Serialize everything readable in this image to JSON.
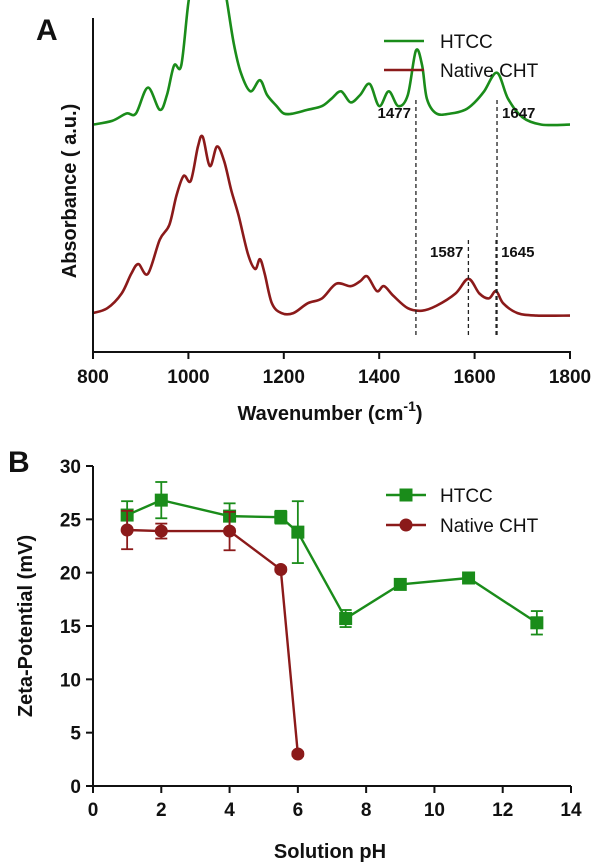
{
  "colors": {
    "htcc": "#1a8c1a",
    "native": "#8b1a1a",
    "axis": "#111111"
  },
  "panels": {
    "a": "A",
    "b": "B"
  },
  "chart_data": [
    {
      "type": "line",
      "panel": "A",
      "xlabel_main": "Wavenumber (cm",
      "xlabel_sup": "-1",
      "xlabel_close": ")",
      "ylabel": "Absorbance ( a.u.)",
      "xlim": [
        800,
        1800
      ],
      "xticks": [
        "800",
        "1000",
        "1200",
        "1400",
        "1600",
        "1800"
      ],
      "legend_position": "top-right",
      "series": [
        {
          "name": "HTCC",
          "x": [
            800,
            840,
            870,
            890,
            915,
            940,
            955,
            970,
            985,
            1000,
            1015,
            1025,
            1040,
            1050,
            1065,
            1080,
            1095,
            1110,
            1130,
            1150,
            1165,
            1185,
            1200,
            1220,
            1250,
            1280,
            1300,
            1320,
            1340,
            1360,
            1380,
            1400,
            1420,
            1440,
            1460,
            1477,
            1490,
            1500,
            1520,
            1550,
            1580,
            1600,
            1620,
            1647,
            1670,
            1700,
            1740,
            1800
          ],
          "y": [
            0.52,
            0.53,
            0.55,
            0.55,
            0.62,
            0.56,
            0.6,
            0.68,
            0.68,
            0.85,
            0.96,
            1.0,
            0.92,
            0.94,
            0.97,
            0.86,
            0.74,
            0.66,
            0.61,
            0.64,
            0.6,
            0.57,
            0.55,
            0.55,
            0.56,
            0.57,
            0.59,
            0.61,
            0.58,
            0.6,
            0.63,
            0.57,
            0.61,
            0.57,
            0.6,
            0.72,
            0.68,
            0.59,
            0.55,
            0.55,
            0.56,
            0.58,
            0.61,
            0.66,
            0.59,
            0.54,
            0.52,
            0.52
          ]
        },
        {
          "name": "Native CHT",
          "x": [
            800,
            830,
            860,
            880,
            895,
            915,
            940,
            960,
            975,
            990,
            1005,
            1020,
            1030,
            1045,
            1060,
            1075,
            1090,
            1105,
            1125,
            1140,
            1150,
            1160,
            1175,
            1195,
            1220,
            1250,
            1280,
            1310,
            1340,
            1360,
            1375,
            1395,
            1410,
            1430,
            1460,
            1490,
            1520,
            1560,
            1587,
            1610,
            1630,
            1645,
            1660,
            1690,
            1730,
            1800
          ],
          "y": [
            0.02,
            0.04,
            0.1,
            0.18,
            0.22,
            0.18,
            0.32,
            0.38,
            0.5,
            0.58,
            0.56,
            0.7,
            0.74,
            0.62,
            0.7,
            0.64,
            0.52,
            0.42,
            0.26,
            0.2,
            0.24,
            0.18,
            0.06,
            0.02,
            0.02,
            0.06,
            0.08,
            0.14,
            0.13,
            0.15,
            0.17,
            0.11,
            0.13,
            0.09,
            0.04,
            0.03,
            0.05,
            0.1,
            0.16,
            0.1,
            0.08,
            0.11,
            0.06,
            0.02,
            0.01,
            0.01
          ]
        }
      ],
      "annotations": [
        {
          "label": "1477",
          "x": 1477,
          "series": "HTCC",
          "side": "left"
        },
        {
          "label": "1647",
          "x": 1647,
          "series": "HTCC",
          "side": "right"
        },
        {
          "label": "1587",
          "x": 1587,
          "series": "Native CHT",
          "side": "left"
        },
        {
          "label": "1645",
          "x": 1645,
          "series": "Native CHT",
          "side": "right"
        }
      ]
    },
    {
      "type": "line",
      "panel": "B",
      "xlabel": "Solution pH",
      "ylabel": "Zeta-Potential (mV)",
      "xlim": [
        0,
        14
      ],
      "ylim": [
        0,
        30
      ],
      "xticks": [
        "0",
        "2",
        "4",
        "6",
        "8",
        "10",
        "12",
        "14"
      ],
      "yticks": [
        "0",
        "5",
        "10",
        "15",
        "20",
        "25",
        "30"
      ],
      "legend_position": "top-right",
      "series": [
        {
          "name": "HTCC",
          "marker": "square",
          "x": [
            1,
            2,
            4,
            5.5,
            6,
            7.4,
            9,
            11,
            13
          ],
          "y": [
            25.4,
            26.8,
            25.3,
            25.2,
            23.8,
            15.7,
            18.9,
            19.5,
            15.3
          ],
          "err": [
            1.3,
            1.7,
            1.2,
            0.6,
            2.9,
            0.8,
            0.4,
            0.4,
            1.1
          ]
        },
        {
          "name": "Native CHT",
          "marker": "circle",
          "x": [
            1,
            2,
            4,
            5.5,
            6
          ],
          "y": [
            24.0,
            23.9,
            23.9,
            20.3,
            3.0
          ],
          "err": [
            1.8,
            0.7,
            1.8,
            0.2,
            0.2
          ]
        }
      ]
    }
  ]
}
